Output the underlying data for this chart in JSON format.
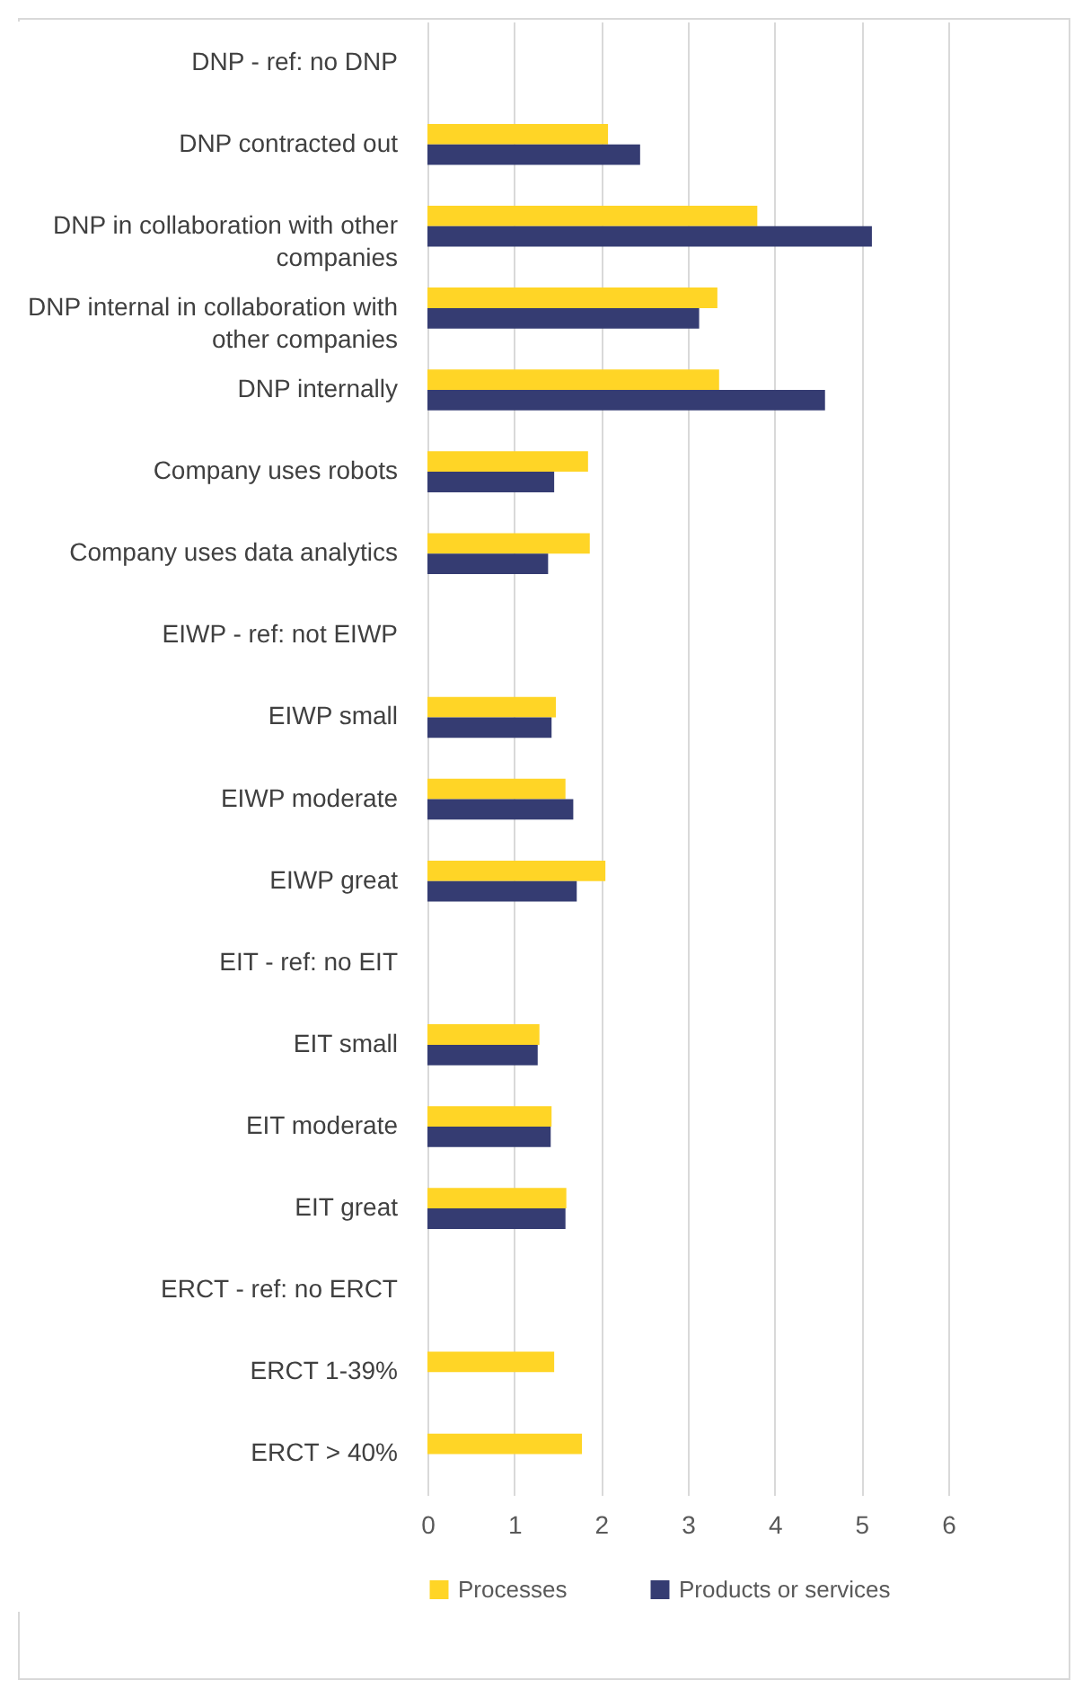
{
  "chart_data": {
    "type": "bar",
    "orientation": "horizontal",
    "categories": [
      "DNP - ref: no DNP",
      "DNP contracted out",
      "DNP in collaboration with other companies",
      "DNP internal in collaboration with other companies",
      "DNP internally",
      "Company uses robots",
      "Company uses data analytics",
      "EIWP - ref: not EIWP",
      "EIWP small",
      "EIWP moderate",
      "EIWP great",
      "EIT - ref: no EIT",
      "EIT small",
      "EIT moderate",
      "EIT great",
      "ERCT - ref: no ERCT",
      "ERCT 1-39%",
      "ERCT > 40%"
    ],
    "series": [
      {
        "name": "Processes",
        "color": "#ffd526",
        "values": [
          null,
          2.08,
          3.8,
          3.34,
          3.36,
          1.85,
          1.87,
          null,
          1.48,
          1.59,
          2.05,
          null,
          1.29,
          1.43,
          1.6,
          null,
          1.46,
          1.78
        ]
      },
      {
        "name": "Products or services",
        "color": "#353c72",
        "values": [
          null,
          2.45,
          5.12,
          3.13,
          4.58,
          1.46,
          1.39,
          null,
          1.43,
          1.68,
          1.72,
          null,
          1.27,
          1.42,
          1.59,
          null,
          null,
          null
        ]
      }
    ],
    "xlim": [
      0,
      6
    ],
    "xticks": [
      0,
      1,
      2,
      3,
      4,
      5,
      6
    ],
    "grid": "x",
    "legend": "bottom"
  }
}
